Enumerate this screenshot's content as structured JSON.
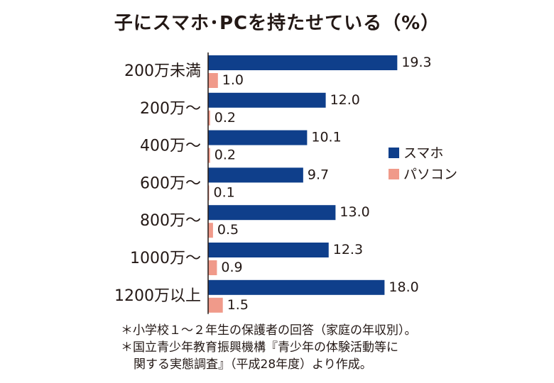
{
  "title": "子にスマホ･PCを持たせている（%）",
  "chart_data": {
    "type": "bar",
    "orientation": "horizontal",
    "title": "子にスマホ･PCを持たせている（%）",
    "categories": [
      "200万未満",
      "200万〜",
      "400万〜",
      "600万〜",
      "800万〜",
      "1000万〜",
      "1200万以上"
    ],
    "series": [
      {
        "name": "スマホ",
        "color": "#0f3f8b",
        "values": [
          19.3,
          12.0,
          10.1,
          9.7,
          13.0,
          12.3,
          18.0
        ]
      },
      {
        "name": "パソコン",
        "color": "#f09a8a",
        "values": [
          1.0,
          0.2,
          0.2,
          0.1,
          0.5,
          0.9,
          1.5
        ]
      }
    ],
    "value_labels": {
      "スマホ": [
        "19.3",
        "12.0",
        "10.1",
        "9.7",
        "13.0",
        "12.3",
        "18.0"
      ],
      "パソコン": [
        "1.0",
        "0.2",
        "0.2",
        "0.1",
        "0.5",
        "0.9",
        "1.5"
      ]
    },
    "xlim": [
      0,
      20
    ],
    "grid": false,
    "legend": "right"
  },
  "notes": [
    "＊小学校１〜２年生の保護者の回答（家庭の年収別）。",
    "＊国立青少年教育振興機構『青少年の体験活動等に",
    "関する実態調査』（平成28年度）より作成。"
  ]
}
